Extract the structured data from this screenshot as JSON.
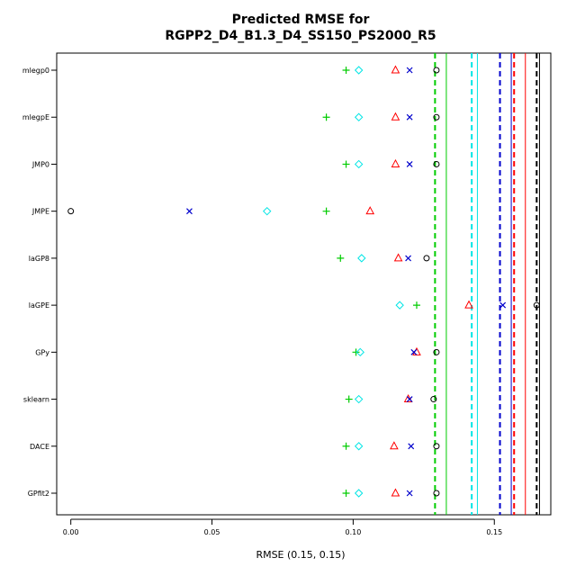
{
  "chart_data": {
    "type": "scatter",
    "title_line1": "Predicted RMSE for",
    "title_line2": "RGPP2_D4_B1.3_D4_SS150_PS2000_R5",
    "xlabel": "RMSE (0.15, 0.15)",
    "ylabel": "",
    "xlim": [
      -0.005,
      0.17
    ],
    "x_ticks": [
      0.0,
      0.05,
      0.1,
      0.15
    ],
    "x_tick_labels": [
      "0.00",
      "0.05",
      "0.10",
      "0.15"
    ],
    "grid": false,
    "legend": "none",
    "categories": [
      "mlegp0",
      "mlegpE",
      "JMP0",
      "JMPE",
      "laGP8",
      "laGPE",
      "GPy",
      "sklearn",
      "DACE",
      "GPfit2"
    ],
    "series": [
      {
        "marker": "circle",
        "color": "#000000",
        "values": [
          0.1295,
          0.1295,
          0.1295,
          0.0,
          0.126,
          0.165,
          0.1295,
          0.1285,
          0.1295,
          0.1295
        ]
      },
      {
        "marker": "triangle",
        "color": "#ff0000",
        "values": [
          0.115,
          0.115,
          0.115,
          0.106,
          0.116,
          0.141,
          0.1225,
          0.1195,
          0.1145,
          0.115
        ]
      },
      {
        "marker": "plus",
        "color": "#00cc00",
        "values": [
          0.0975,
          0.0905,
          0.0975,
          0.0905,
          0.0955,
          0.1225,
          0.101,
          0.0985,
          0.0975,
          0.0975
        ]
      },
      {
        "marker": "x",
        "color": "#0000cc",
        "values": [
          0.12,
          0.12,
          0.12,
          0.042,
          0.1195,
          0.153,
          0.1215,
          0.12,
          0.1205,
          0.12
        ]
      },
      {
        "marker": "diamond",
        "color": "#00e5e5",
        "values": [
          0.102,
          0.102,
          0.102,
          0.0695,
          0.103,
          0.1165,
          0.1025,
          0.102,
          0.102,
          0.102
        ]
      }
    ],
    "vlines": [
      {
        "x": 0.129,
        "color": "#00cc00",
        "dash": "dashed"
      },
      {
        "x": 0.133,
        "color": "#00cc00",
        "dash": "solid"
      },
      {
        "x": 0.142,
        "color": "#00e5e5",
        "dash": "dashed"
      },
      {
        "x": 0.144,
        "color": "#00e5e5",
        "dash": "solid"
      },
      {
        "x": 0.152,
        "color": "#0000cc",
        "dash": "dashed"
      },
      {
        "x": 0.156,
        "color": "#0000cc",
        "dash": "solid"
      },
      {
        "x": 0.157,
        "color": "#ff0000",
        "dash": "dashed"
      },
      {
        "x": 0.161,
        "color": "#ff0000",
        "dash": "solid"
      },
      {
        "x": 0.165,
        "color": "#000000",
        "dash": "dashed"
      },
      {
        "x": 0.166,
        "color": "#000000",
        "dash": "solid"
      }
    ]
  }
}
